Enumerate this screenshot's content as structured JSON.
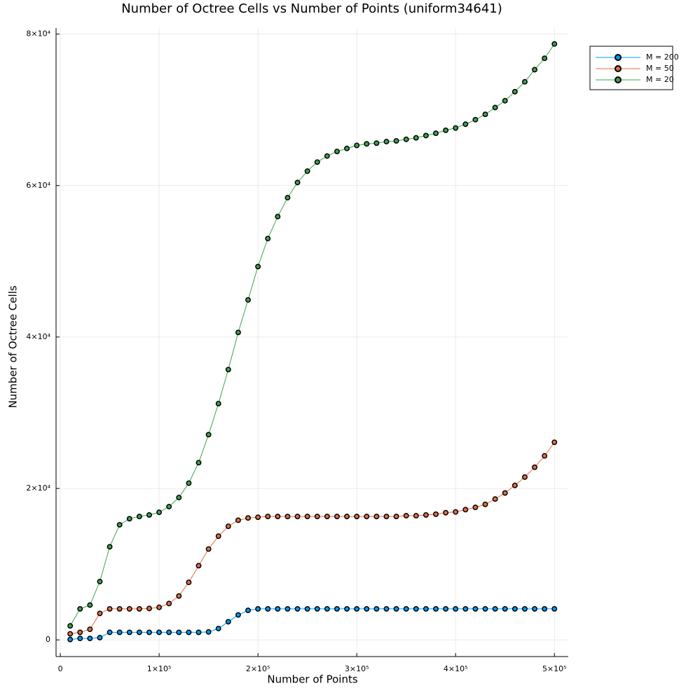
{
  "chart_data": {
    "type": "line",
    "title": "Number of Octree Cells vs Number of Points (uniform34641)",
    "x_label": "Number of Points",
    "y_label": "Number of Octree Cells",
    "x": [
      10000,
      20000,
      30000,
      40000,
      50000,
      60000,
      70000,
      80000,
      90000,
      100000,
      110000,
      120000,
      130000,
      140000,
      150000,
      160000,
      170000,
      180000,
      190000,
      200000,
      210000,
      220000,
      230000,
      240000,
      250000,
      260000,
      270000,
      280000,
      290000,
      300000,
      310000,
      320000,
      330000,
      340000,
      350000,
      360000,
      370000,
      380000,
      390000,
      400000,
      410000,
      420000,
      430000,
      440000,
      450000,
      460000,
      470000,
      480000,
      490000,
      500000
    ],
    "series": [
      {
        "name": "M = 200",
        "color": "#009af9",
        "values": [
          50,
          200,
          200,
          300,
          1000,
          1000,
          1000,
          1000,
          1000,
          1000,
          1000,
          1000,
          1000,
          1000,
          1050,
          1500,
          2400,
          3300,
          3900,
          4100,
          4100,
          4100,
          4100,
          4100,
          4100,
          4100,
          4100,
          4100,
          4100,
          4100,
          4100,
          4100,
          4100,
          4100,
          4100,
          4100,
          4100,
          4100,
          4100,
          4100,
          4100,
          4100,
          4100,
          4100,
          4100,
          4100,
          4100,
          4100,
          4100,
          4100
        ]
      },
      {
        "name": "M = 50",
        "color": "#e26f46",
        "values": [
          800,
          1000,
          1400,
          3500,
          4100,
          4100,
          4100,
          4100,
          4150,
          4300,
          4800,
          5800,
          7600,
          9800,
          12000,
          13700,
          15000,
          15800,
          16100,
          16200,
          16300,
          16300,
          16300,
          16300,
          16300,
          16300,
          16300,
          16300,
          16300,
          16300,
          16300,
          16300,
          16300,
          16300,
          16400,
          16400,
          16500,
          16600,
          16800,
          16900,
          17200,
          17500,
          17900,
          18600,
          19400,
          20400,
          21500,
          22800,
          24300,
          26100
        ]
      },
      {
        "name": "M = 20",
        "color": "#3da44d",
        "values": [
          1850,
          4100,
          4600,
          7700,
          12300,
          15200,
          16000,
          16300,
          16500,
          16850,
          17600,
          18800,
          20700,
          23400,
          27100,
          31200,
          35700,
          40600,
          44900,
          49300,
          53000,
          55900,
          58400,
          60400,
          61900,
          63100,
          63900,
          64500,
          64900,
          65300,
          65500,
          65600,
          65800,
          65900,
          66100,
          66300,
          66600,
          66900,
          67300,
          67600,
          68100,
          68700,
          69400,
          70300,
          71200,
          72400,
          73700,
          75300,
          76800,
          78700
        ]
      }
    ],
    "xlim": [
      -4300,
      514000
    ],
    "ylim": [
      -2200,
      80800
    ],
    "xticks": [
      0,
      {
        "value": 100000,
        "label": "1×10⁵"
      },
      {
        "value": 200000,
        "label": "2×10⁵"
      },
      {
        "value": 300000,
        "label": "3×10⁵"
      },
      {
        "value": 400000,
        "label": "4×10⁵"
      },
      {
        "value": 500000,
        "label": "5×10⁵"
      }
    ],
    "yticks": [
      0,
      {
        "value": 20000,
        "label": "2×10⁴"
      },
      {
        "value": 40000,
        "label": "4×10⁴"
      },
      {
        "value": 60000,
        "label": "6×10⁴"
      },
      {
        "value": 80000,
        "label": "8×10⁴"
      }
    ],
    "grid": true,
    "legend": "top-right"
  }
}
